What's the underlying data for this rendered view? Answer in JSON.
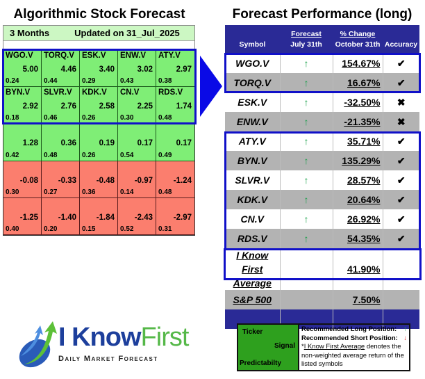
{
  "left_panel": {
    "title": "Algorithmic Stock Forecast",
    "horizon": "3 Months",
    "updated": "Updated on 31_Jul_2025",
    "cells": [
      {
        "symbol": "WGO.V",
        "signal": "5.00",
        "predictability": "0.24",
        "type": "pos"
      },
      {
        "symbol": "TORQ.V",
        "signal": "4.46",
        "predictability": "0.44",
        "type": "pos"
      },
      {
        "symbol": "ESK.V",
        "signal": "3.40",
        "predictability": "0.29",
        "type": "pos"
      },
      {
        "symbol": "ENW.V",
        "signal": "3.02",
        "predictability": "0.43",
        "type": "pos"
      },
      {
        "symbol": "ATY.V",
        "signal": "2.97",
        "predictability": "0.38",
        "type": "pos"
      },
      {
        "symbol": "BYN.V",
        "signal": "2.92",
        "predictability": "0.18",
        "type": "pos"
      },
      {
        "symbol": "SLVR.V",
        "signal": "2.76",
        "predictability": "0.46",
        "type": "pos"
      },
      {
        "symbol": "KDK.V",
        "signal": "2.58",
        "predictability": "0.26",
        "type": "pos"
      },
      {
        "symbol": "CN.V",
        "signal": "2.25",
        "predictability": "0.30",
        "type": "pos"
      },
      {
        "symbol": "RDS.V",
        "signal": "1.74",
        "predictability": "0.48",
        "type": "pos"
      },
      {
        "symbol": "",
        "signal": "1.28",
        "predictability": "0.42",
        "type": "pos"
      },
      {
        "symbol": "",
        "signal": "0.36",
        "predictability": "0.48",
        "type": "pos"
      },
      {
        "symbol": "",
        "signal": "0.19",
        "predictability": "0.26",
        "type": "pos"
      },
      {
        "symbol": "",
        "signal": "0.17",
        "predictability": "0.54",
        "type": "pos"
      },
      {
        "symbol": "",
        "signal": "0.17",
        "predictability": "0.49",
        "type": "pos"
      },
      {
        "symbol": "",
        "signal": "-0.08",
        "predictability": "0.30",
        "type": "neg"
      },
      {
        "symbol": "",
        "signal": "-0.33",
        "predictability": "0.27",
        "type": "neg"
      },
      {
        "symbol": "",
        "signal": "-0.48",
        "predictability": "0.36",
        "type": "neg"
      },
      {
        "symbol": "",
        "signal": "-0.97",
        "predictability": "0.14",
        "type": "neg"
      },
      {
        "symbol": "",
        "signal": "-1.24",
        "predictability": "0.48",
        "type": "neg"
      },
      {
        "symbol": "",
        "signal": "-1.25",
        "predictability": "0.40",
        "type": "neg"
      },
      {
        "symbol": "",
        "signal": "-1.40",
        "predictability": "0.20",
        "type": "neg"
      },
      {
        "symbol": "",
        "signal": "-1.84",
        "predictability": "0.15",
        "type": "neg"
      },
      {
        "symbol": "",
        "signal": "-2.43",
        "predictability": "0.52",
        "type": "neg"
      },
      {
        "symbol": "",
        "signal": "-2.97",
        "predictability": "0.31",
        "type": "neg"
      }
    ]
  },
  "right_panel": {
    "title": "Forecast Performance (long)",
    "headers": {
      "symbol": "Symbol",
      "forecast_top": "Forecast",
      "forecast_bottom": "July 31th",
      "change_top": "% Change",
      "change_bottom": "October 31th",
      "accuracy": "Accuracy"
    },
    "rows": [
      {
        "symbol": "WGO.V",
        "forecast": "↑",
        "change": "154.67%",
        "accuracy": "✔"
      },
      {
        "symbol": "TORQ.V",
        "forecast": "↑",
        "change": "16.67%",
        "accuracy": "✔"
      },
      {
        "symbol": "ESK.V",
        "forecast": "↑",
        "change": "-32.50%",
        "accuracy": "✖"
      },
      {
        "symbol": "ENW.V",
        "forecast": "↑",
        "change": "-21.35%",
        "accuracy": "✖"
      },
      {
        "symbol": "ATY.V",
        "forecast": "↑",
        "change": "35.71%",
        "accuracy": "✔"
      },
      {
        "symbol": "BYN.V",
        "forecast": "↑",
        "change": "135.29%",
        "accuracy": "✔"
      },
      {
        "symbol": "SLVR.V",
        "forecast": "↑",
        "change": "28.57%",
        "accuracy": "✔"
      },
      {
        "symbol": "KDK.V",
        "forecast": "↑",
        "change": "20.64%",
        "accuracy": "✔"
      },
      {
        "symbol": "CN.V",
        "forecast": "↑",
        "change": "26.92%",
        "accuracy": "✔"
      },
      {
        "symbol": "RDS.V",
        "forecast": "↑",
        "change": "54.35%",
        "accuracy": "✔"
      }
    ],
    "average": {
      "label_line1": "I Know First",
      "label_line2": "Average",
      "change": "41.90%"
    },
    "benchmark": {
      "label": "S&P 500",
      "change": "7.50%"
    }
  },
  "logo": {
    "word1": "I Know",
    "word2": "First",
    "tagline": "Daily Market Forecast"
  },
  "legend": {
    "ticker": "Ticker",
    "signal": "Signal",
    "predictability": "Predictabilty",
    "long_label": "Recommended Long Position:",
    "long_icon": "↑",
    "short_label": "Recommended Short Position:",
    "short_icon": "↓",
    "note_prefix": "*",
    "note_link": "I Know First Average",
    "note_rest": " denotes the non-weighted average return of the listed symbols"
  },
  "colors": {
    "positive_cell": "#7fee76",
    "negative_cell": "#fb7e6e",
    "header_navy": "#2a2a96",
    "highlight_blue": "#1010c8",
    "up_arrow": "#1aa04a",
    "down_arrow": "#e03030"
  }
}
